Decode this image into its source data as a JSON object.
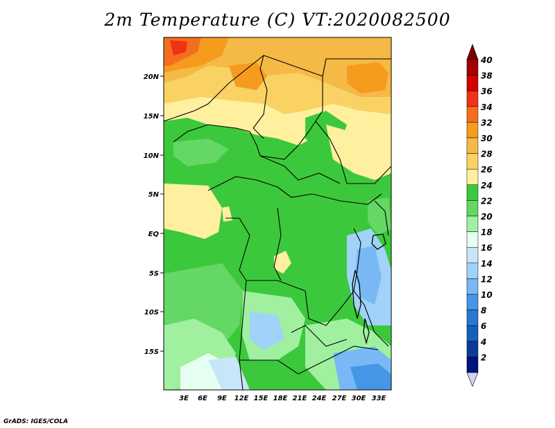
{
  "title": "2m Temperature (C) VT:2020082500",
  "footer": "GrADS: IGES/COLA",
  "map": {
    "lat_ticks": [
      "20N",
      "15N",
      "10N",
      "5N",
      "EQ",
      "5S",
      "10S",
      "15S"
    ],
    "lon_ticks": [
      "3E",
      "6E",
      "9E",
      "12E",
      "15E",
      "18E",
      "21E",
      "24E",
      "27E",
      "30E",
      "33E"
    ]
  },
  "colorbar": {
    "labels": [
      "40",
      "38",
      "36",
      "34",
      "32",
      "30",
      "28",
      "26",
      "24",
      "22",
      "20",
      "18",
      "16",
      "14",
      "12",
      "10",
      "8",
      "6",
      "4",
      "2"
    ],
    "colors": [
      "#a50000",
      "#d20000",
      "#f03214",
      "#f56e1e",
      "#f59b1e",
      "#f5b946",
      "#fad264",
      "#fff0a0",
      "#3cc83c",
      "#64d764",
      "#a0f0a0",
      "#e6fff0",
      "#c8e6fa",
      "#a0d2fa",
      "#78b9f5",
      "#4696e6",
      "#2878d2",
      "#1460be",
      "#0a3c96",
      "#00147d"
    ],
    "top_arrow_color": "#780000",
    "bottom_arrow_color": "#d2d2f0"
  }
}
